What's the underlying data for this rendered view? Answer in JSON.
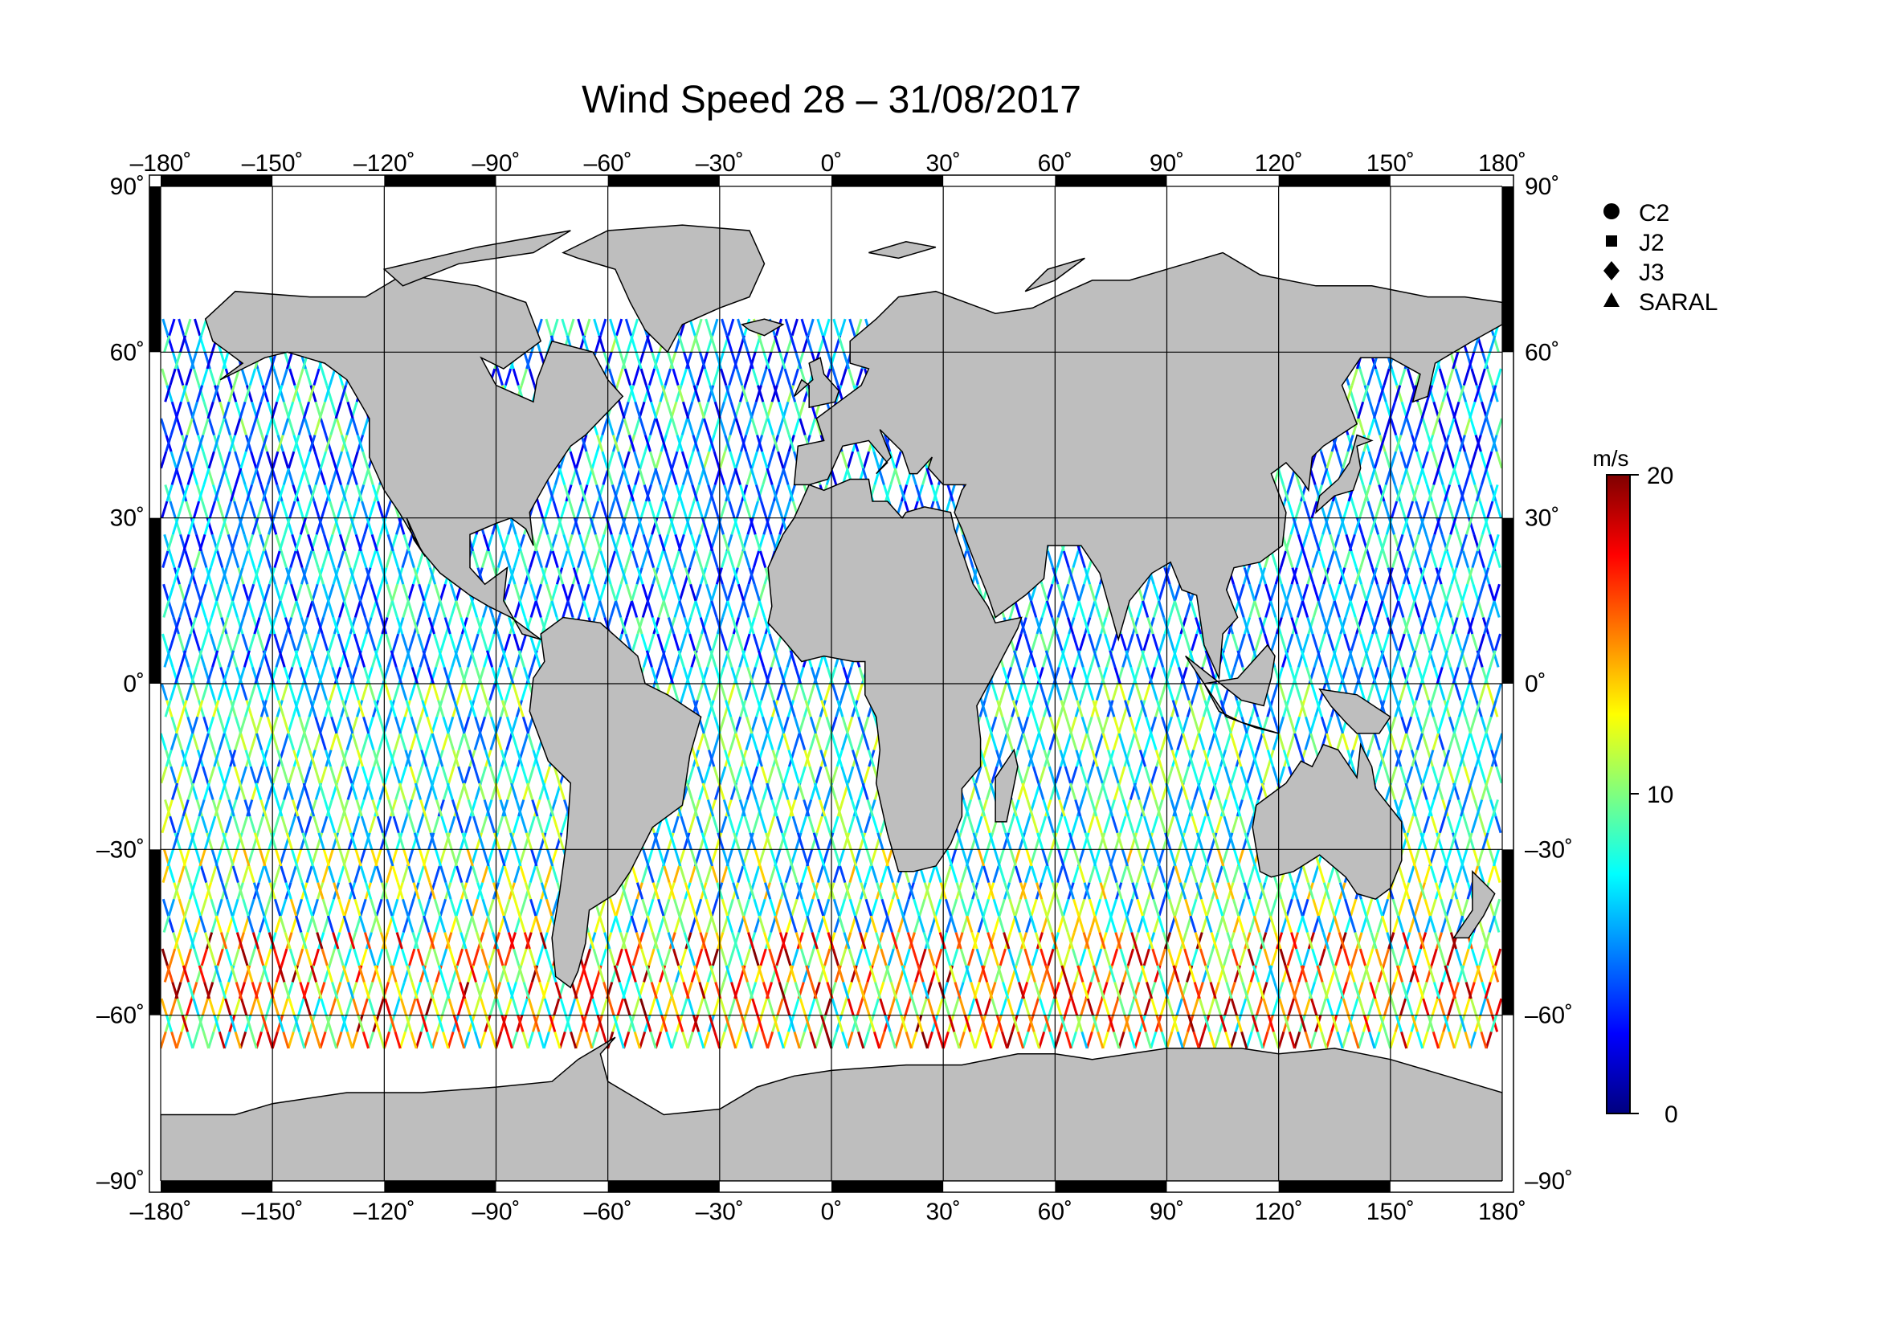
{
  "title": "Wind Speed 28 – 31/08/2017",
  "map": {
    "projection": "equirectangular",
    "lon_range": [
      -180,
      180
    ],
    "lat_range": [
      -90,
      90
    ],
    "lon_ticks": [
      -180,
      -150,
      -120,
      -90,
      -60,
      -30,
      0,
      30,
      60,
      90,
      120,
      150,
      180
    ],
    "lat_ticks": [
      90,
      60,
      30,
      0,
      -30,
      -60,
      -90
    ],
    "lon_tick_labels": [
      "–180˚",
      "–150˚",
      "–120˚",
      "–90˚",
      "–60˚",
      "–30˚",
      "0˚",
      "30˚",
      "60˚",
      "90˚",
      "120˚",
      "150˚",
      "180˚"
    ],
    "lat_tick_labels": [
      "90˚",
      "60˚",
      "30˚",
      "0˚",
      "–30˚",
      "–60˚",
      "–90˚"
    ],
    "grid": true,
    "land_color": "#bebebe",
    "ocean_color": "#ffffff",
    "frame": "alternating black/white 30° bands"
  },
  "legend": {
    "placement": "right-top",
    "items": [
      {
        "symbol": "circle",
        "label": "C2"
      },
      {
        "symbol": "square",
        "label": "J2"
      },
      {
        "symbol": "diamond",
        "label": "J3"
      },
      {
        "symbol": "triangle",
        "label": "SARAL"
      }
    ]
  },
  "colorbar": {
    "unit_label": "m/s",
    "min": 0,
    "max": 20,
    "tick_values": [
      20,
      10,
      0
    ],
    "tick_labels": [
      "20",
      "10",
      "0"
    ],
    "colors": [
      "#00007f",
      "#0000ff",
      "#007fff",
      "#00ffff",
      "#7fff7f",
      "#ffff00",
      "#ff7f00",
      "#ff0000",
      "#7f0000"
    ]
  },
  "chart_data": {
    "type": "scatter",
    "title": "Wind Speed 28 – 31/08/2017",
    "xlabel": "",
    "ylabel": "",
    "xlim": [
      -180,
      180
    ],
    "ylim": [
      -90,
      90
    ],
    "series": [
      {
        "name": "C2"
      },
      {
        "name": "J2"
      },
      {
        "name": "J3"
      },
      {
        "name": "SARAL"
      }
    ],
    "ground_tracks": {
      "description_of_values": "wind speed along altimeter ground tracks, m/s",
      "lat_coverage": [
        -66,
        66
      ],
      "speed_by_latitude_band": [
        {
          "lat": [
            40,
            66
          ],
          "typical_speed": 6,
          "speed_range": [
            2,
            12
          ]
        },
        {
          "lat": [
            0,
            40
          ],
          "typical_speed": 6,
          "speed_range": [
            2,
            10
          ]
        },
        {
          "lat": [
            -30,
            0
          ],
          "typical_speed": 8,
          "speed_range": [
            3,
            12
          ]
        },
        {
          "lat": [
            -45,
            -30
          ],
          "typical_speed": 9,
          "speed_range": [
            3,
            14
          ]
        },
        {
          "lat": [
            -66,
            -45
          ],
          "typical_speed": 13,
          "speed_range": [
            6,
            20
          ]
        }
      ]
    }
  }
}
